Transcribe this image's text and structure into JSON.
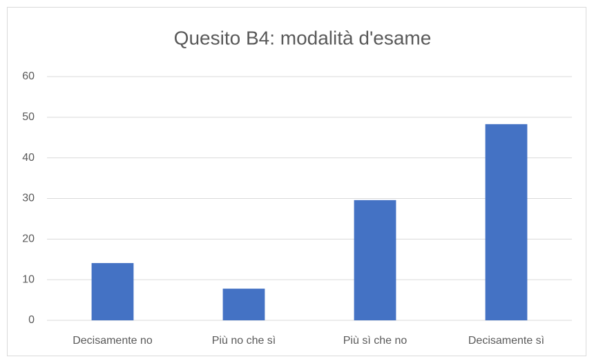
{
  "chart_data": {
    "type": "bar",
    "title": "Quesito B4: modalità d'esame",
    "categories": [
      "Decisamente no",
      "Più no che sì",
      "Più sì che no",
      "Decisamente sì"
    ],
    "values": [
      14.1,
      7.8,
      29.6,
      48.3
    ],
    "color": "#4472c4",
    "ylim": [
      0,
      60
    ],
    "yticks": [
      0,
      10,
      20,
      30,
      40,
      50,
      60
    ],
    "grid": true
  }
}
